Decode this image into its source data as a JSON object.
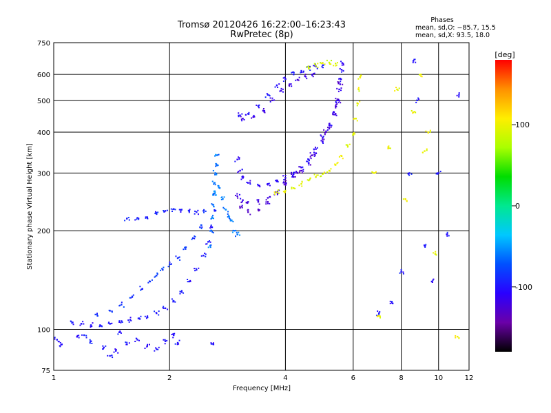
{
  "chart_data": {
    "type": "scatter",
    "title": "Tromsø 20120426 16:22:00–16:23:43",
    "subtitle": "RwPretec (8p)",
    "xlabel": "Frequency [MHz]",
    "ylabel": "Stationary phase Virtual Height [km]",
    "x_scale": "log",
    "y_scale": "log",
    "xlim": [
      1,
      12
    ],
    "ylim": [
      75,
      750
    ],
    "x_ticks": [
      1,
      2,
      4,
      6,
      8,
      10,
      12
    ],
    "y_ticks": [
      75,
      100,
      200,
      300,
      400,
      500,
      600,
      750
    ],
    "grid": true,
    "phases": {
      "title": "Phases",
      "line_o": "mean, sd,O: −85.7, 15.5",
      "line_x": "mean, sd,X:  93.5, 18.0"
    },
    "colorbar": {
      "label": "[deg]",
      "range": [
        -180,
        180
      ],
      "ticks": [
        -100,
        0,
        100
      ],
      "colors": [
        "#000000",
        "#6a00a8",
        "#2a00ff",
        "#0050ff",
        "#00c8ff",
        "#00e890",
        "#00dd00",
        "#aaff00",
        "#ffee00",
        "#ff9000",
        "#ff0000"
      ]
    },
    "series": [
      {
        "trace": "low-F-layer-cusp",
        "phase_deg": -100,
        "points": [
          [
            1.12,
            105
          ],
          [
            1.18,
            104
          ],
          [
            1.25,
            103
          ],
          [
            1.32,
            103
          ],
          [
            1.4,
            104
          ],
          [
            1.5,
            106
          ],
          [
            1.58,
            107
          ],
          [
            1.66,
            108
          ],
          [
            1.75,
            109
          ],
          [
            1.85,
            112
          ],
          [
            1.95,
            116
          ],
          [
            2.05,
            122
          ],
          [
            2.15,
            130
          ],
          [
            2.25,
            140
          ],
          [
            2.35,
            152
          ],
          [
            2.45,
            168
          ],
          [
            2.52,
            185
          ],
          [
            2.58,
            205
          ],
          [
            2.62,
            230
          ]
        ]
      },
      {
        "trace": "upper-low-trace",
        "phase_deg": -85,
        "points": [
          [
            1.3,
            110
          ],
          [
            1.4,
            114
          ],
          [
            1.5,
            119
          ],
          [
            1.6,
            126
          ],
          [
            1.7,
            133
          ],
          [
            1.78,
            140
          ],
          [
            1.85,
            146
          ],
          [
            1.92,
            152
          ],
          [
            2.0,
            158
          ],
          [
            2.1,
            165
          ],
          [
            2.2,
            176
          ],
          [
            2.3,
            190
          ],
          [
            2.4,
            205
          ]
        ]
      },
      {
        "trace": "E-layer-plateau",
        "phase_deg": -95,
        "points": [
          [
            1.55,
            218
          ],
          [
            1.65,
            219
          ],
          [
            1.75,
            220
          ],
          [
            1.85,
            225
          ],
          [
            1.95,
            230
          ],
          [
            2.05,
            233
          ],
          [
            2.15,
            232
          ],
          [
            2.25,
            230
          ],
          [
            2.35,
            228
          ],
          [
            2.45,
            230
          ]
        ]
      },
      {
        "trace": "F1-sheared-column",
        "phase_deg": -60,
        "points": [
          [
            2.55,
            180
          ],
          [
            2.57,
            200
          ],
          [
            2.58,
            220
          ],
          [
            2.6,
            240
          ],
          [
            2.61,
            260
          ],
          [
            2.62,
            280
          ],
          [
            2.63,
            300
          ],
          [
            2.64,
            320
          ],
          [
            2.65,
            340
          ],
          [
            2.62,
            260
          ],
          [
            2.7,
            270
          ],
          [
            2.75,
            250
          ],
          [
            2.8,
            232
          ],
          [
            2.85,
            222
          ],
          [
            2.9,
            215
          ],
          [
            2.95,
            200
          ],
          [
            3.0,
            195
          ]
        ]
      },
      {
        "trace": "F2-ordinary",
        "phase_deg": -110,
        "points": [
          [
            3.0,
            330
          ],
          [
            3.05,
            305
          ],
          [
            3.1,
            290
          ],
          [
            3.2,
            280
          ],
          [
            3.4,
            275
          ],
          [
            3.6,
            278
          ],
          [
            3.8,
            283
          ],
          [
            4.0,
            290
          ],
          [
            4.2,
            298
          ],
          [
            4.4,
            312
          ],
          [
            4.6,
            330
          ],
          [
            4.8,
            355
          ],
          [
            5.0,
            385
          ],
          [
            5.2,
            420
          ],
          [
            5.35,
            460
          ],
          [
            5.45,
            500
          ],
          [
            5.52,
            540
          ],
          [
            5.58,
            580
          ],
          [
            5.6,
            620
          ],
          [
            5.62,
            650
          ]
        ]
      },
      {
        "trace": "F2-secondary",
        "phase_deg": -120,
        "points": [
          [
            3.0,
            255
          ],
          [
            3.1,
            248
          ],
          [
            3.2,
            245
          ],
          [
            3.4,
            245
          ],
          [
            3.6,
            252
          ],
          [
            3.8,
            262
          ],
          [
            4.0,
            278
          ],
          [
            4.2,
            292
          ],
          [
            4.4,
            305
          ],
          [
            4.6,
            322
          ],
          [
            4.8,
            345
          ],
          [
            5.0,
            375
          ],
          [
            5.2,
            410
          ],
          [
            5.4,
            455
          ],
          [
            5.5,
            500
          ],
          [
            5.55,
            560
          ]
        ]
      },
      {
        "trace": "F2-tertiary",
        "phase_deg": -130,
        "points": [
          [
            3.05,
            235
          ],
          [
            3.2,
            228
          ],
          [
            3.4,
            232
          ],
          [
            3.6,
            245
          ],
          [
            3.8,
            262
          ],
          [
            4.0,
            280
          ],
          [
            4.3,
            300
          ],
          [
            4.7,
            340
          ],
          [
            5.1,
            400
          ],
          [
            5.4,
            480
          ]
        ]
      },
      {
        "trace": "upper-bow-o",
        "phase_deg": -100,
        "points": [
          [
            3.05,
            450
          ],
          [
            3.2,
            455
          ],
          [
            3.4,
            480
          ],
          [
            3.6,
            520
          ],
          [
            3.8,
            555
          ],
          [
            4.0,
            580
          ],
          [
            4.2,
            600
          ],
          [
            4.4,
            615
          ],
          [
            4.6,
            625
          ],
          [
            4.8,
            635
          ],
          [
            5.0,
            640
          ]
        ]
      },
      {
        "trace": "upper-bow-lower",
        "phase_deg": -120,
        "points": [
          [
            3.1,
            440
          ],
          [
            3.3,
            445
          ],
          [
            3.5,
            465
          ],
          [
            3.7,
            500
          ],
          [
            3.9,
            535
          ],
          [
            4.1,
            560
          ],
          [
            4.3,
            578
          ],
          [
            4.5,
            592
          ],
          [
            4.7,
            600
          ]
        ]
      },
      {
        "trace": "F2-extraordinary",
        "phase_deg": 95,
        "points": [
          [
            3.8,
            262
          ],
          [
            4.0,
            265
          ],
          [
            4.2,
            270
          ],
          [
            4.4,
            278
          ],
          [
            4.6,
            285
          ],
          [
            4.8,
            292
          ],
          [
            5.0,
            298
          ],
          [
            5.2,
            305
          ],
          [
            5.4,
            318
          ],
          [
            5.6,
            338
          ],
          [
            5.8,
            365
          ],
          [
            6.0,
            395
          ],
          [
            6.1,
            440
          ],
          [
            6.15,
            490
          ],
          [
            6.2,
            540
          ],
          [
            6.25,
            590
          ]
        ]
      },
      {
        "trace": "upper-bow-x",
        "phase_deg": 90,
        "points": [
          [
            4.6,
            625
          ],
          [
            4.8,
            638
          ],
          [
            5.0,
            650
          ],
          [
            5.2,
            652
          ],
          [
            5.4,
            648
          ]
        ]
      },
      {
        "trace": "scatter-80-100km",
        "phase_deg": -100,
        "points": [
          [
            1.02,
            93
          ],
          [
            1.05,
            90
          ],
          [
            1.15,
            95
          ],
          [
            1.25,
            92
          ],
          [
            1.35,
            88
          ],
          [
            1.45,
            86
          ],
          [
            1.55,
            90
          ],
          [
            1.65,
            93
          ],
          [
            1.75,
            89
          ],
          [
            1.85,
            87
          ],
          [
            1.95,
            92
          ],
          [
            2.05,
            96
          ],
          [
            2.1,
            91
          ],
          [
            2.6,
            90
          ],
          [
            1.4,
            83
          ],
          [
            1.2,
            96
          ],
          [
            1.48,
            98
          ]
        ]
      },
      {
        "trace": "scattered-high-freq",
        "phase_deg": -100,
        "points": [
          [
            7.6,
            120
          ],
          [
            8.0,
            150
          ],
          [
            8.6,
            660
          ],
          [
            8.8,
            500
          ],
          [
            9.2,
            180
          ],
          [
            9.6,
            140
          ],
          [
            10.0,
            300
          ],
          [
            10.5,
            195
          ],
          [
            11.3,
            520
          ],
          [
            7.0,
            112
          ],
          [
            8.4,
            300
          ]
        ]
      },
      {
        "trace": "scattered-high-freq-x",
        "phase_deg": 100,
        "points": [
          [
            6.8,
            300
          ],
          [
            7.0,
            110
          ],
          [
            7.4,
            360
          ],
          [
            7.8,
            540
          ],
          [
            8.2,
            250
          ],
          [
            8.6,
            460
          ],
          [
            9.0,
            600
          ],
          [
            9.2,
            350
          ],
          [
            9.4,
            400
          ],
          [
            9.8,
            170
          ],
          [
            11.2,
            95
          ]
        ]
      }
    ]
  }
}
